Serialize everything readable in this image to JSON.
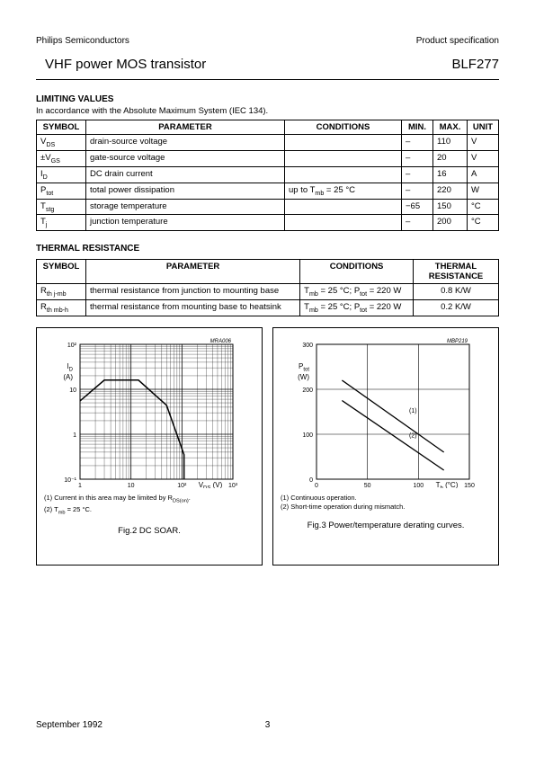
{
  "header": {
    "left": "Philips Semiconductors",
    "right": "Product specification"
  },
  "title": {
    "left": "VHF power MOS transistor",
    "right": "BLF277"
  },
  "limiting": {
    "heading": "LIMITING VALUES",
    "sub": "In accordance with the Absolute Maximum System (IEC 134).",
    "columns": [
      "SYMBOL",
      "PARAMETER",
      "CONDITIONS",
      "MIN.",
      "MAX.",
      "UNIT"
    ],
    "rows": [
      {
        "sym_html": "V<sub>DS</sub>",
        "param": "drain-source voltage",
        "cond": "",
        "min": "–",
        "max": "110",
        "unit": "V"
      },
      {
        "sym_html": "±V<sub>GS</sub>",
        "param": "gate-source voltage",
        "cond": "",
        "min": "–",
        "max": "20",
        "unit": "V"
      },
      {
        "sym_html": "I<sub>D</sub>",
        "param": "DC drain current",
        "cond": "",
        "min": "–",
        "max": "16",
        "unit": "A"
      },
      {
        "sym_html": "P<sub>tot</sub>",
        "param": "total power dissipation",
        "cond_html": "up to T<sub>mb</sub> = 25 °C",
        "min": "–",
        "max": "220",
        "unit": "W"
      },
      {
        "sym_html": "T<sub>stg</sub>",
        "param": "storage temperature",
        "cond": "",
        "min": "−65",
        "max": "150",
        "unit": "°C"
      },
      {
        "sym_html": "T<sub>j</sub>",
        "param": "junction temperature",
        "cond": "",
        "min": "–",
        "max": "200",
        "unit": "°C"
      }
    ]
  },
  "thermal": {
    "heading": "THERMAL RESISTANCE",
    "columns": [
      "SYMBOL",
      "PARAMETER",
      "CONDITIONS",
      "THERMAL RESISTANCE"
    ],
    "rows": [
      {
        "sym_html": "R<sub>th j-mb</sub>",
        "param": "thermal resistance from junction to mounting base",
        "cond_html": "T<sub>mb</sub> = 25 °C; P<sub>tot</sub> = 220 W",
        "val": "0.8 K/W"
      },
      {
        "sym_html": "R<sub>th mb-h</sub>",
        "param": "thermal resistance from mounting base to heatsink",
        "cond_html": "T<sub>mb</sub> = 25 °C; P<sub>tot</sub> = 220 W",
        "val": "0.2 K/W"
      }
    ]
  },
  "chart1": {
    "type": "line-loglog",
    "code": "MRA006",
    "ylabel_html": "I<sub>D</sub><br>(A)",
    "xlabel_html": "V<sub>DS</sub> (V)",
    "x_decades": [
      1,
      10,
      100,
      1000
    ],
    "x_ticklabels": [
      "1",
      "10",
      "10²",
      "10³"
    ],
    "y_decades": [
      0.1,
      1,
      10,
      100
    ],
    "y_ticklabels": [
      "10⁻¹",
      "1",
      "10",
      "10²"
    ],
    "plot": {
      "w": 170,
      "h": 150,
      "ox": 40,
      "oy": 10
    },
    "grid_color": "#000000",
    "line_color": "#000000",
    "line_width": 1.5,
    "soar_points": [
      [
        1,
        5.5
      ],
      [
        3,
        16
      ],
      [
        14,
        16
      ],
      [
        50,
        4.4
      ],
      [
        110,
        0.35
      ],
      [
        110,
        0.1
      ]
    ],
    "notes": [
      "(1)  Current in this area may be limited by R<sub>DS(on)</sub>.",
      "(2)  T<sub>mb</sub> = 25 °C."
    ],
    "caption": "Fig.2  DC SOAR."
  },
  "chart2": {
    "type": "line",
    "code": "MBP219",
    "ylabel_html": "P<sub>tot</sub><br>(W)",
    "xlabel_html": "T<sub>h</sub> (°C)",
    "xlim": [
      0,
      150
    ],
    "xtick_step": 50,
    "x_ticklabels": [
      "0",
      "50",
      "100",
      "150"
    ],
    "ylim": [
      0,
      300
    ],
    "ytick_step": 100,
    "y_ticklabels": [
      "0",
      "100",
      "200",
      "300"
    ],
    "plot": {
      "w": 170,
      "h": 150,
      "ox": 40,
      "oy": 10
    },
    "grid_color": "#000000",
    "line_color": "#000000",
    "line_width": 1.3,
    "series": [
      {
        "label": "(1)",
        "points": [
          [
            25,
            220
          ],
          [
            125,
            60
          ]
        ]
      },
      {
        "label": "(2)",
        "points": [
          [
            25,
            175
          ],
          [
            125,
            20
          ]
        ]
      }
    ],
    "notes": [
      "(1)  Continuous operation.",
      "(2)  Short-time operation during mismatch."
    ],
    "caption": "Fig.3  Power/temperature derating curves."
  },
  "footer": {
    "date": "September 1992",
    "page": "3"
  }
}
